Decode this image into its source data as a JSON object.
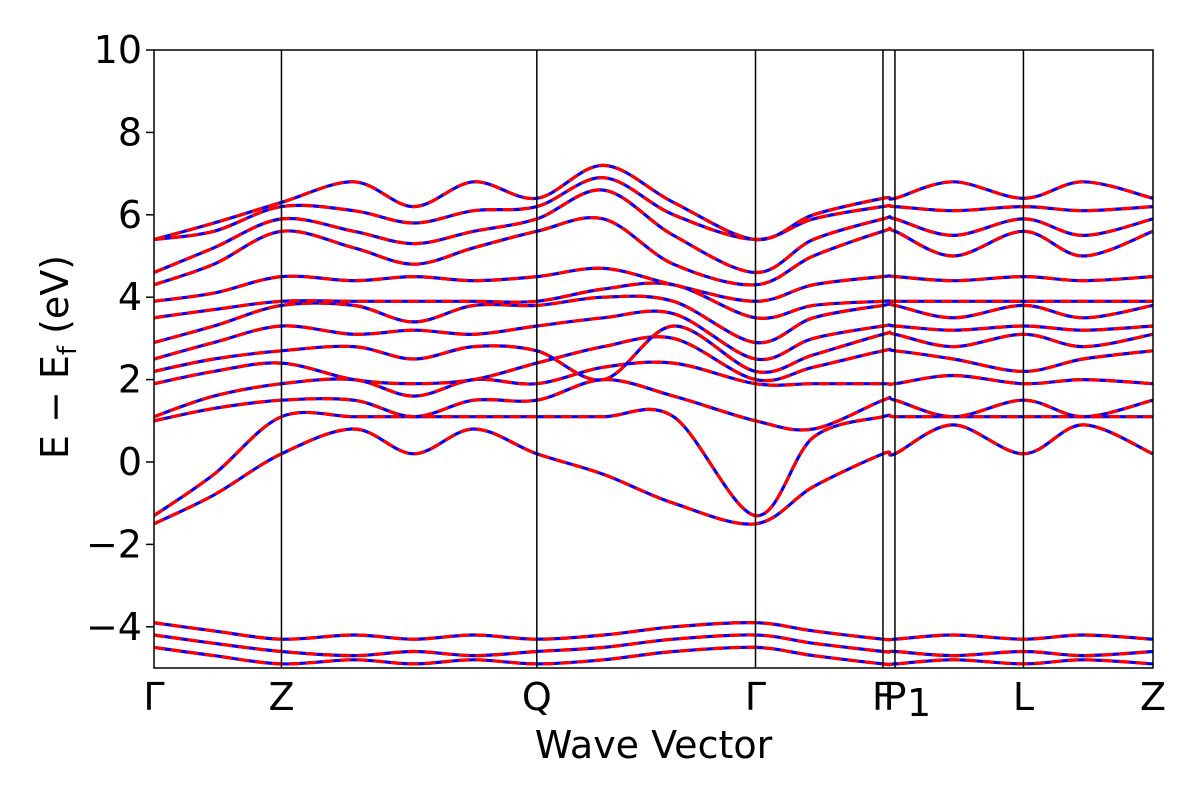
{
  "chart_data": {
    "type": "line",
    "title": "",
    "xlabel": "Wave Vector",
    "ylabel": "E − E_f (eV)",
    "ylabel_parts": {
      "main": "E − E",
      "sub": "f",
      "unit": " (eV)"
    },
    "ylim": [
      -5,
      10
    ],
    "yticks": [
      -4,
      -2,
      0,
      2,
      4,
      6,
      8,
      10
    ],
    "ytick_labels": [
      "−4",
      "−2",
      "0",
      "2",
      "4",
      "6",
      "8",
      "10"
    ],
    "grid": false,
    "legend": "none",
    "high_symmetry_points": [
      {
        "label": "Γ",
        "x": 0.0
      },
      {
        "label": "Z",
        "x": 0.1276
      },
      {
        "label": "Q",
        "x": 0.3832
      },
      {
        "label": "Γ",
        "x": 0.6021
      },
      {
        "label": "F",
        "x": 0.7297
      },
      {
        "label": "P",
        "x": 0.7417
      },
      {
        "label": "1",
        "x": 0.7417,
        "note": "subscript of P"
      },
      {
        "label": "L",
        "x": 0.8703
      },
      {
        "label": "Z",
        "x": 1.0
      }
    ],
    "colors": {
      "series_a": "#0000ff",
      "series_b": "#ff0000",
      "axes": "#000000"
    },
    "series": [
      {
        "style": "solid",
        "color": "#0000ff"
      },
      {
        "style": "dashed",
        "color": "#ff0000"
      }
    ],
    "bands": [
      {
        "x": [
          0.0,
          0.06,
          0.1276,
          0.2,
          0.26,
          0.32,
          0.3832,
          0.45,
          0.52,
          0.6021,
          0.66,
          0.7297,
          0.7417,
          0.8,
          0.8703,
          0.93,
          1.0
        ],
        "y": [
          -1.5,
          -0.8,
          0.2,
          0.8,
          0.2,
          0.8,
          0.2,
          -0.3,
          -1.0,
          -1.5,
          -0.6,
          0.2,
          0.2,
          0.9,
          0.2,
          0.9,
          0.2
        ]
      },
      {
        "x": [
          0.0,
          0.06,
          0.1276,
          0.2,
          0.26,
          0.32,
          0.3832,
          0.45,
          0.52,
          0.6021,
          0.66,
          0.7297,
          0.7417,
          0.8,
          0.8703,
          0.93,
          1.0
        ],
        "y": [
          -1.3,
          -0.3,
          1.1,
          1.1,
          1.1,
          1.1,
          1.1,
          1.1,
          1.1,
          -1.3,
          0.6,
          1.1,
          1.1,
          1.1,
          1.1,
          1.1,
          1.1
        ]
      },
      {
        "x": [
          0.0,
          0.06,
          0.1276,
          0.2,
          0.26,
          0.32,
          0.3832,
          0.45,
          0.52,
          0.6021,
          0.66,
          0.7297,
          0.7417,
          0.8,
          0.8703,
          0.93,
          1.0
        ],
        "y": [
          1.0,
          1.3,
          1.5,
          1.5,
          1.1,
          1.5,
          1.5,
          2.0,
          1.6,
          1.0,
          0.8,
          1.5,
          1.5,
          1.1,
          1.5,
          1.1,
          1.5
        ]
      },
      {
        "x": [
          0.0,
          0.06,
          0.1276,
          0.2,
          0.26,
          0.32,
          0.3832,
          0.45,
          0.52,
          0.6021,
          0.66,
          0.7297,
          0.7417,
          0.8,
          0.8703,
          0.93,
          1.0
        ],
        "y": [
          1.1,
          1.6,
          1.9,
          2.0,
          1.6,
          2.0,
          1.9,
          2.3,
          2.4,
          1.9,
          1.9,
          1.9,
          1.9,
          2.1,
          1.9,
          2.0,
          1.9
        ]
      },
      {
        "x": [
          0.0,
          0.06,
          0.1276,
          0.2,
          0.26,
          0.32,
          0.3832,
          0.45,
          0.52,
          0.6021,
          0.66,
          0.7297,
          0.7417,
          0.8,
          0.8703,
          0.93,
          1.0
        ],
        "y": [
          1.9,
          2.2,
          2.4,
          2.0,
          1.9,
          2.0,
          2.4,
          2.8,
          3.0,
          2.0,
          2.3,
          2.7,
          2.7,
          2.5,
          2.2,
          2.5,
          2.7
        ]
      },
      {
        "x": [
          0.0,
          0.06,
          0.1276,
          0.2,
          0.26,
          0.32,
          0.3832,
          0.45,
          0.52,
          0.6021,
          0.66,
          0.7297,
          0.7417,
          0.8,
          0.8703,
          0.93,
          1.0
        ],
        "y": [
          2.2,
          2.5,
          2.7,
          2.8,
          2.5,
          2.8,
          2.7,
          2.0,
          3.3,
          2.2,
          2.6,
          3.1,
          3.1,
          2.8,
          3.1,
          2.8,
          3.1
        ]
      },
      {
        "x": [
          0.0,
          0.06,
          0.1276,
          0.2,
          0.26,
          0.32,
          0.3832,
          0.45,
          0.52,
          0.6021,
          0.66,
          0.7297,
          0.7417,
          0.8,
          0.8703,
          0.93,
          1.0
        ],
        "y": [
          2.5,
          2.9,
          3.3,
          3.1,
          3.2,
          3.1,
          3.3,
          3.5,
          3.6,
          2.5,
          3.0,
          3.3,
          3.3,
          3.2,
          3.3,
          3.2,
          3.3
        ]
      },
      {
        "x": [
          0.0,
          0.06,
          0.1276,
          0.2,
          0.26,
          0.32,
          0.3832,
          0.45,
          0.52,
          0.6021,
          0.66,
          0.7297,
          0.7417,
          0.8,
          0.8703,
          0.93,
          1.0
        ],
        "y": [
          2.9,
          3.3,
          3.8,
          3.8,
          3.4,
          3.8,
          3.8,
          4.0,
          3.9,
          2.9,
          3.5,
          3.8,
          3.8,
          3.5,
          3.8,
          3.5,
          3.8
        ]
      },
      {
        "x": [
          0.0,
          0.06,
          0.1276,
          0.2,
          0.26,
          0.32,
          0.3832,
          0.45,
          0.52,
          0.6021,
          0.66,
          0.7297,
          0.7417,
          0.8,
          0.8703,
          0.93,
          1.0
        ],
        "y": [
          3.5,
          3.7,
          3.9,
          3.9,
          3.9,
          3.9,
          3.9,
          4.2,
          4.3,
          3.5,
          3.8,
          3.9,
          3.9,
          3.9,
          3.9,
          3.9,
          3.9
        ]
      },
      {
        "x": [
          0.0,
          0.06,
          0.1276,
          0.2,
          0.26,
          0.32,
          0.3832,
          0.45,
          0.52,
          0.6021,
          0.66,
          0.7297,
          0.7417,
          0.8,
          0.8703,
          0.93,
          1.0
        ],
        "y": [
          3.9,
          4.1,
          4.5,
          4.4,
          4.5,
          4.4,
          4.5,
          4.7,
          4.3,
          3.9,
          4.3,
          4.5,
          4.5,
          4.4,
          4.5,
          4.4,
          4.5
        ]
      },
      {
        "x": [
          0.0,
          0.06,
          0.1276,
          0.2,
          0.26,
          0.32,
          0.3832,
          0.45,
          0.52,
          0.6021,
          0.66,
          0.7297,
          0.7417,
          0.8,
          0.8703,
          0.93,
          1.0
        ],
        "y": [
          4.3,
          4.8,
          5.6,
          5.2,
          4.8,
          5.2,
          5.6,
          5.9,
          4.8,
          4.3,
          5.0,
          5.6,
          5.6,
          5.0,
          5.6,
          5.0,
          5.6
        ]
      },
      {
        "x": [
          0.0,
          0.06,
          0.1276,
          0.2,
          0.26,
          0.32,
          0.3832,
          0.45,
          0.52,
          0.6021,
          0.66,
          0.7297,
          0.7417,
          0.8,
          0.8703,
          0.93,
          1.0
        ],
        "y": [
          4.6,
          5.2,
          5.9,
          5.6,
          5.3,
          5.6,
          5.9,
          6.6,
          5.5,
          4.6,
          5.4,
          5.9,
          5.9,
          5.5,
          5.9,
          5.5,
          5.9
        ]
      },
      {
        "x": [
          0.0,
          0.06,
          0.1276,
          0.2,
          0.26,
          0.32,
          0.3832,
          0.45,
          0.52,
          0.6021,
          0.66,
          0.7297,
          0.7417,
          0.8,
          0.8703,
          0.93,
          1.0
        ],
        "y": [
          5.4,
          5.6,
          6.2,
          6.1,
          5.8,
          6.1,
          6.2,
          6.9,
          6.0,
          5.4,
          5.9,
          6.2,
          6.2,
          6.1,
          6.2,
          6.1,
          6.2
        ]
      },
      {
        "x": [
          0.0,
          0.06,
          0.1276,
          0.2,
          0.26,
          0.32,
          0.3832,
          0.45,
          0.52,
          0.6021,
          0.66,
          0.7297,
          0.7417,
          0.8,
          0.8703,
          0.93,
          1.0
        ],
        "y": [
          5.4,
          5.8,
          6.3,
          6.8,
          6.2,
          6.8,
          6.4,
          7.2,
          6.3,
          5.4,
          6.0,
          6.4,
          6.4,
          6.8,
          6.4,
          6.8,
          6.4
        ]
      },
      {
        "x": [
          0.0,
          0.06,
          0.1276,
          0.2,
          0.26,
          0.32,
          0.3832,
          0.45,
          0.52,
          0.6021,
          0.66,
          0.7297,
          0.7417,
          0.8,
          0.8703,
          0.93,
          1.0
        ],
        "y": [
          -3.9,
          -4.1,
          -4.3,
          -4.2,
          -4.3,
          -4.2,
          -4.3,
          -4.2,
          -4.0,
          -3.9,
          -4.1,
          -4.3,
          -4.3,
          -4.2,
          -4.3,
          -4.2,
          -4.3
        ]
      },
      {
        "x": [
          0.0,
          0.06,
          0.1276,
          0.2,
          0.26,
          0.32,
          0.3832,
          0.45,
          0.52,
          0.6021,
          0.66,
          0.7297,
          0.7417,
          0.8,
          0.8703,
          0.93,
          1.0
        ],
        "y": [
          -4.2,
          -4.4,
          -4.6,
          -4.7,
          -4.6,
          -4.7,
          -4.6,
          -4.5,
          -4.3,
          -4.2,
          -4.4,
          -4.6,
          -4.6,
          -4.7,
          -4.6,
          -4.7,
          -4.6
        ]
      },
      {
        "x": [
          0.0,
          0.06,
          0.1276,
          0.2,
          0.26,
          0.32,
          0.3832,
          0.45,
          0.52,
          0.6021,
          0.66,
          0.7297,
          0.7417,
          0.8,
          0.8703,
          0.93,
          1.0
        ],
        "y": [
          -4.5,
          -4.7,
          -4.9,
          -4.8,
          -4.9,
          -4.8,
          -4.9,
          -4.8,
          -4.6,
          -4.5,
          -4.7,
          -4.9,
          -4.9,
          -4.8,
          -4.9,
          -4.8,
          -4.9
        ]
      }
    ]
  }
}
